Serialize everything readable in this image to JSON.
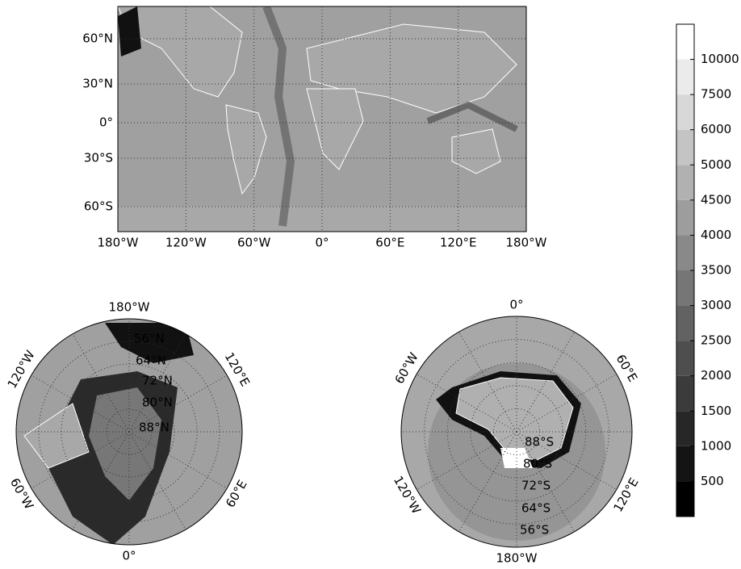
{
  "world_map": {
    "lat_labels": [
      "60°N",
      "30°N",
      "0°",
      "30°S",
      "60°S"
    ],
    "lon_labels": [
      "180°W",
      "120°W",
      "60°W",
      "0°",
      "60°E",
      "120°E",
      "180°W"
    ]
  },
  "north_polar": {
    "lon_labels": [
      "180°W",
      "120°E",
      "60°E",
      "0°",
      "60°W",
      "120°W"
    ],
    "lat_labels": [
      "56°N",
      "64°N",
      "72°N",
      "80°N",
      "88°N"
    ]
  },
  "south_polar": {
    "lon_labels": [
      "0°",
      "60°E",
      "120°E",
      "180°W",
      "120°W",
      "60°W"
    ],
    "lat_labels": [
      "88°S",
      "80°S",
      "72°S",
      "64°S",
      "56°S"
    ]
  },
  "colorbar": {
    "ticks": [
      500,
      1000,
      1500,
      2000,
      2500,
      3000,
      3500,
      4000,
      4500,
      5000,
      6000,
      7500,
      10000
    ]
  }
}
